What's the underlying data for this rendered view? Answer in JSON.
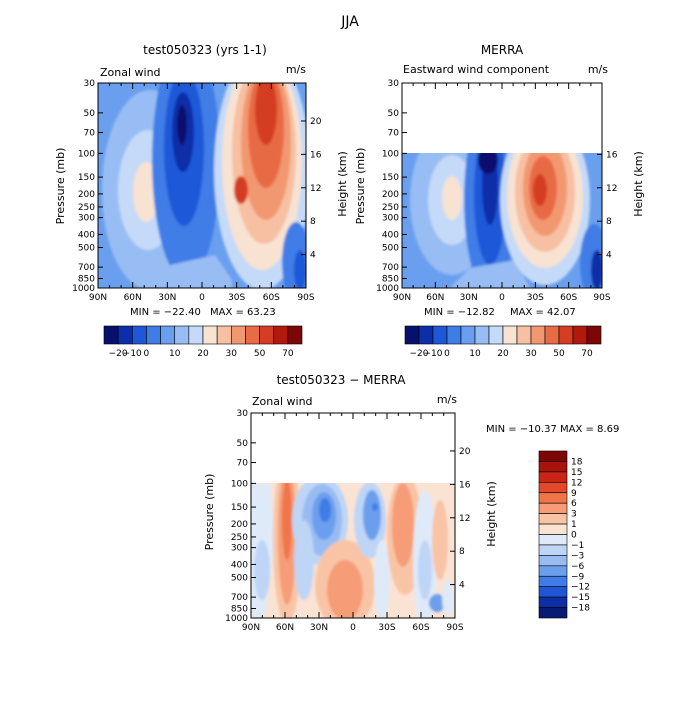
{
  "page_title": "JJA",
  "chart_data": [
    {
      "type": "heatmap",
      "title": "test050323 (yrs 1-1)",
      "field_label": "Zonal wind",
      "units": "m/s",
      "ylabel": "Pressure (mb)",
      "y2label": "Height (km)",
      "x_ticks": [
        "90N",
        "60N",
        "30N",
        "0",
        "30S",
        "60S",
        "90S"
      ],
      "y_ticks": [
        "30",
        "50",
        "70",
        "100",
        "150",
        "200",
        "250",
        "300",
        "400",
        "500",
        "700",
        "850",
        "1000"
      ],
      "height_ticks": [
        "4",
        "8",
        "12",
        "16",
        "20"
      ],
      "min_text": "MIN = −22.40",
      "max_text": "MAX =  63.23",
      "plev_top": 30,
      "colorbar_labels": [
        "−20",
        "−10",
        "0",
        "10",
        "20",
        "30",
        "50",
        "70"
      ]
    },
    {
      "type": "heatmap",
      "title": "MERRA",
      "field_label": "Eastward wind component",
      "units": "m/s",
      "ylabel": "Pressure (mb)",
      "y2label": "Height (km)",
      "x_ticks": [
        "90N",
        "60N",
        "30N",
        "0",
        "30S",
        "60S",
        "90S"
      ],
      "y_ticks": [
        "30",
        "50",
        "70",
        "100",
        "150",
        "200",
        "250",
        "300",
        "400",
        "500",
        "700",
        "850",
        "1000"
      ],
      "height_ticks": [
        "4",
        "8",
        "12",
        "16"
      ],
      "min_text": "MIN = −12.82",
      "max_text": "MAX =  42.07",
      "plev_top": 100,
      "colorbar_labels": [
        "−20",
        "−10",
        "0",
        "10",
        "20",
        "30",
        "50",
        "70"
      ]
    },
    {
      "type": "heatmap",
      "title": "test050323 − MERRA",
      "field_label": "Zonal wind",
      "units": "m/s",
      "ylabel": "Pressure (mb)",
      "y2label": "Height (km)",
      "x_ticks": [
        "90N",
        "60N",
        "30N",
        "0",
        "30S",
        "60S",
        "90S"
      ],
      "y_ticks": [
        "30",
        "50",
        "70",
        "100",
        "150",
        "200",
        "250",
        "300",
        "400",
        "500",
        "700",
        "850",
        "1000"
      ],
      "height_ticks": [
        "4",
        "8",
        "12",
        "16",
        "20"
      ],
      "minmax_text": "MIN = −10.37   MAX =   8.69",
      "plev_top": 100,
      "colorbar_labels": [
        "18",
        "15",
        "12",
        "9",
        "6",
        "3",
        "1",
        "0",
        "−1",
        "−3",
        "−6",
        "−9",
        "−12",
        "−15",
        "−18"
      ]
    }
  ],
  "colors": {
    "abs_scale": [
      "#08106e",
      "#0c2ea8",
      "#1e58d8",
      "#3f7de6",
      "#6a9fef",
      "#98bdf4",
      "#c5daf8",
      "#f8e2d2",
      "#f7c0a3",
      "#f29871",
      "#e86b45",
      "#d53e24",
      "#b2190e",
      "#7e0606"
    ],
    "diff_scale": [
      "#7e0606",
      "#a8130b",
      "#c82516",
      "#e2492b",
      "#f07448",
      "#f69c76",
      "#f9c4a6",
      "#fbe3d4",
      "#dfeaf9",
      "#bed5f6",
      "#98bcf2",
      "#6c9eee",
      "#3f7ce6",
      "#1e56d6",
      "#0c2fa6",
      "#071a74"
    ]
  }
}
